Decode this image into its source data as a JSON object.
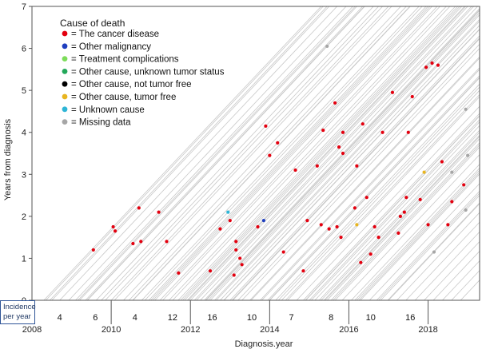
{
  "chart_data": {
    "type": "scatter",
    "xlabel": "Diagnosis.year",
    "ylabel": "Years from diagnosis",
    "xlim": [
      2008,
      2019.3
    ],
    "ylim": [
      0,
      7
    ],
    "x_ticks": [
      "2008",
      "2010",
      "2012",
      "2014",
      "2016",
      "2018"
    ],
    "y_ticks": [
      "0",
      "1",
      "2",
      "3",
      "4",
      "5",
      "6",
      "7"
    ],
    "reference_lines": "grey follow-up lines of slope 1 starting at each diagnosis",
    "legend": {
      "title": "Cause of death",
      "entries": [
        {
          "label": "= The cancer disease",
          "color": "#e3000f"
        },
        {
          "label": "= Other malignancy",
          "color": "#1f3fbf"
        },
        {
          "label": "= Treatment complications",
          "color": "#7ddc5a"
        },
        {
          "label": "= Other cause, unknown tumor status",
          "color": "#23a85a"
        },
        {
          "label": "= Other cause, not tumor free",
          "color": "#000000"
        },
        {
          "label": "= Other cause, tumor free",
          "color": "#e8b520"
        },
        {
          "label": "= Unknown cause",
          "color": "#2eb5d6"
        },
        {
          "label": "= Missing data",
          "color": "#a6a6a6"
        }
      ]
    },
    "incidence": {
      "label_line1": "Incidence",
      "label_line2": "per year",
      "entries": [
        {
          "year": 2008.7,
          "count": "4"
        },
        {
          "year": 2009.6,
          "count": "6"
        },
        {
          "year": 2010.6,
          "count": "4"
        },
        {
          "year": 2011.55,
          "count": "12"
        },
        {
          "year": 2012.55,
          "count": "16"
        },
        {
          "year": 2013.55,
          "count": "10"
        },
        {
          "year": 2014.55,
          "count": "7"
        },
        {
          "year": 2015.55,
          "count": "8"
        },
        {
          "year": 2016.55,
          "count": "10"
        },
        {
          "year": 2017.55,
          "count": "16"
        }
      ]
    },
    "series": [
      {
        "name": "The cancer disease",
        "color": "#e3000f",
        "points": [
          [
            2009.55,
            1.2
          ],
          [
            2010.05,
            1.75
          ],
          [
            2010.1,
            1.65
          ],
          [
            2010.55,
            1.35
          ],
          [
            2010.7,
            2.2
          ],
          [
            2010.75,
            1.4
          ],
          [
            2011.2,
            2.1
          ],
          [
            2011.4,
            1.4
          ],
          [
            2011.7,
            0.65
          ],
          [
            2012.5,
            0.7
          ],
          [
            2012.75,
            1.7
          ],
          [
            2013.0,
            1.9
          ],
          [
            2013.1,
            0.6
          ],
          [
            2013.15,
            1.2
          ],
          [
            2013.15,
            1.4
          ],
          [
            2013.25,
            1.0
          ],
          [
            2013.3,
            0.85
          ],
          [
            2013.7,
            1.75
          ],
          [
            2013.9,
            4.15
          ],
          [
            2014.0,
            3.45
          ],
          [
            2014.2,
            3.75
          ],
          [
            2014.35,
            1.15
          ],
          [
            2014.65,
            3.1
          ],
          [
            2014.85,
            0.7
          ],
          [
            2014.95,
            1.9
          ],
          [
            2015.2,
            3.2
          ],
          [
            2015.3,
            1.8
          ],
          [
            2015.35,
            4.05
          ],
          [
            2015.5,
            1.7
          ],
          [
            2015.65,
            4.7
          ],
          [
            2015.7,
            1.75
          ],
          [
            2015.75,
            3.65
          ],
          [
            2015.8,
            1.5
          ],
          [
            2015.85,
            4.0
          ],
          [
            2015.85,
            3.5
          ],
          [
            2016.15,
            2.2
          ],
          [
            2016.2,
            3.2
          ],
          [
            2016.3,
            0.9
          ],
          [
            2016.35,
            4.2
          ],
          [
            2016.45,
            2.45
          ],
          [
            2016.55,
            1.1
          ],
          [
            2016.65,
            1.75
          ],
          [
            2016.75,
            1.5
          ],
          [
            2016.85,
            4.0
          ],
          [
            2017.1,
            4.95
          ],
          [
            2017.25,
            1.6
          ],
          [
            2017.3,
            2.0
          ],
          [
            2017.4,
            2.1
          ],
          [
            2017.45,
            2.45
          ],
          [
            2017.5,
            4.0
          ],
          [
            2017.6,
            4.85
          ],
          [
            2017.8,
            2.4
          ],
          [
            2017.95,
            5.55
          ],
          [
            2018.0,
            1.8
          ],
          [
            2018.1,
            5.65
          ],
          [
            2018.25,
            5.6
          ],
          [
            2018.35,
            3.3
          ],
          [
            2018.5,
            1.8
          ],
          [
            2018.6,
            2.35
          ],
          [
            2018.9,
            2.75
          ]
        ]
      },
      {
        "name": "Other malignancy",
        "color": "#1f3fbf",
        "points": [
          [
            2013.85,
            1.9
          ]
        ]
      },
      {
        "name": "Other cause, tumor free",
        "color": "#e8b520",
        "points": [
          [
            2016.2,
            1.8
          ],
          [
            2017.9,
            3.05
          ]
        ]
      },
      {
        "name": "Unknown cause",
        "color": "#2eb5d6",
        "points": [
          [
            2012.95,
            2.1
          ]
        ]
      },
      {
        "name": "Missing data",
        "color": "#a6a6a6",
        "points": [
          [
            2015.45,
            6.05
          ],
          [
            2018.15,
            1.15
          ],
          [
            2018.6,
            3.05
          ],
          [
            2018.95,
            4.55
          ],
          [
            2018.95,
            2.15
          ],
          [
            2019.0,
            3.45
          ]
        ]
      }
    ]
  }
}
